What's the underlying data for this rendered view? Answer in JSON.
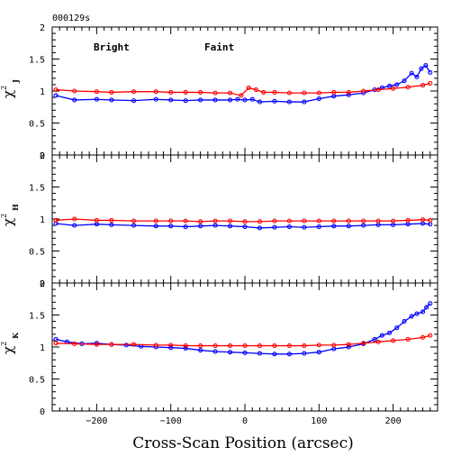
{
  "stamp": "000129s",
  "xlabel": "Cross-Scan Position (arcsec)",
  "legend": [
    {
      "label": "Bright",
      "color": "#0000ff"
    },
    {
      "label": "Faint",
      "color": "#ff0000"
    }
  ],
  "chart_data": {
    "type": "scatter",
    "panels": [
      {
        "ylabel": "χ² J",
        "ylabel_main": "χ",
        "ylabel_sup": "2",
        "ylabel_sub": "J",
        "series": [
          {
            "name": "Bright",
            "color": "#0000ff",
            "x": [
              -255,
              -230,
              -200,
              -180,
              -150,
              -120,
              -100,
              -80,
              -60,
              -40,
              -20,
              -10,
              0,
              10,
              20,
              40,
              60,
              80,
              100,
              120,
              140,
              160,
              175,
              185,
              195,
              205,
              215,
              225,
              232,
              238,
              244,
              250
            ],
            "y": [
              0.93,
              0.86,
              0.87,
              0.86,
              0.85,
              0.87,
              0.86,
              0.85,
              0.86,
              0.86,
              0.86,
              0.87,
              0.86,
              0.87,
              0.83,
              0.84,
              0.83,
              0.83,
              0.88,
              0.92,
              0.94,
              0.97,
              1.02,
              1.05,
              1.08,
              1.1,
              1.16,
              1.28,
              1.22,
              1.35,
              1.4,
              1.29
            ]
          },
          {
            "name": "Faint",
            "color": "#ff0000",
            "x": [
              -255,
              -230,
              -200,
              -180,
              -150,
              -120,
              -100,
              -80,
              -60,
              -40,
              -20,
              -5,
              5,
              15,
              25,
              40,
              60,
              80,
              100,
              120,
              140,
              160,
              180,
              200,
              220,
              240,
              250
            ],
            "y": [
              1.02,
              1.0,
              0.99,
              0.98,
              0.99,
              0.99,
              0.98,
              0.98,
              0.98,
              0.97,
              0.97,
              0.93,
              1.05,
              1.02,
              0.98,
              0.98,
              0.97,
              0.97,
              0.97,
              0.98,
              0.98,
              1.0,
              1.02,
              1.04,
              1.06,
              1.09,
              1.12
            ]
          }
        ]
      },
      {
        "ylabel": "χ² H",
        "ylabel_main": "χ",
        "ylabel_sup": "2",
        "ylabel_sub": "H",
        "series": [
          {
            "name": "Bright",
            "color": "#0000ff",
            "x": [
              -255,
              -230,
              -200,
              -180,
              -150,
              -120,
              -100,
              -80,
              -60,
              -40,
              -20,
              0,
              20,
              40,
              60,
              80,
              100,
              120,
              140,
              160,
              180,
              200,
              220,
              240,
              250
            ],
            "y": [
              0.93,
              0.9,
              0.92,
              0.91,
              0.9,
              0.89,
              0.89,
              0.88,
              0.89,
              0.9,
              0.89,
              0.88,
              0.86,
              0.87,
              0.88,
              0.87,
              0.88,
              0.89,
              0.89,
              0.9,
              0.91,
              0.91,
              0.92,
              0.93,
              0.92
            ]
          },
          {
            "name": "Faint",
            "color": "#ff0000",
            "x": [
              -255,
              -230,
              -200,
              -180,
              -150,
              -120,
              -100,
              -80,
              -60,
              -40,
              -20,
              0,
              20,
              40,
              60,
              80,
              100,
              120,
              140,
              160,
              180,
              200,
              220,
              240,
              250
            ],
            "y": [
              0.98,
              1.0,
              0.98,
              0.98,
              0.97,
              0.97,
              0.97,
              0.97,
              0.96,
              0.97,
              0.97,
              0.96,
              0.96,
              0.97,
              0.97,
              0.97,
              0.97,
              0.97,
              0.97,
              0.97,
              0.97,
              0.97,
              0.98,
              0.99,
              0.98
            ]
          }
        ]
      },
      {
        "ylabel": "χ² K",
        "ylabel_main": "χ",
        "ylabel_sup": "2",
        "ylabel_sub": "K",
        "series": [
          {
            "name": "Bright",
            "color": "#0000ff",
            "x": [
              -255,
              -240,
              -220,
              -200,
              -180,
              -160,
              -140,
              -120,
              -100,
              -80,
              -60,
              -40,
              -20,
              0,
              20,
              40,
              60,
              80,
              100,
              120,
              140,
              160,
              175,
              185,
              195,
              205,
              215,
              225,
              232,
              240,
              245,
              250
            ],
            "y": [
              1.12,
              1.08,
              1.05,
              1.06,
              1.04,
              1.03,
              1.01,
              1.0,
              0.99,
              0.98,
              0.95,
              0.93,
              0.92,
              0.91,
              0.9,
              0.89,
              0.89,
              0.9,
              0.92,
              0.97,
              1.0,
              1.05,
              1.12,
              1.18,
              1.22,
              1.3,
              1.4,
              1.48,
              1.52,
              1.55,
              1.62,
              1.68
            ]
          },
          {
            "name": "Faint",
            "color": "#ff0000",
            "x": [
              -255,
              -230,
              -200,
              -180,
              -150,
              -120,
              -100,
              -80,
              -60,
              -40,
              -20,
              0,
              20,
              40,
              60,
              80,
              100,
              120,
              140,
              160,
              180,
              200,
              220,
              240,
              250
            ],
            "y": [
              1.06,
              1.05,
              1.04,
              1.04,
              1.04,
              1.03,
              1.03,
              1.02,
              1.02,
              1.02,
              1.02,
              1.02,
              1.02,
              1.02,
              1.02,
              1.02,
              1.03,
              1.03,
              1.04,
              1.06,
              1.08,
              1.1,
              1.12,
              1.15,
              1.18
            ]
          }
        ]
      }
    ],
    "xlim": [
      -260,
      260
    ],
    "ylim": [
      0,
      2
    ],
    "xticks": [
      -200,
      -100,
      0,
      100,
      200
    ],
    "yticks": [
      0,
      0.5,
      1,
      1.5,
      2
    ],
    "ytick_labels": [
      "0",
      "0.5",
      "1",
      "1.5",
      "2"
    ],
    "grid": false
  }
}
